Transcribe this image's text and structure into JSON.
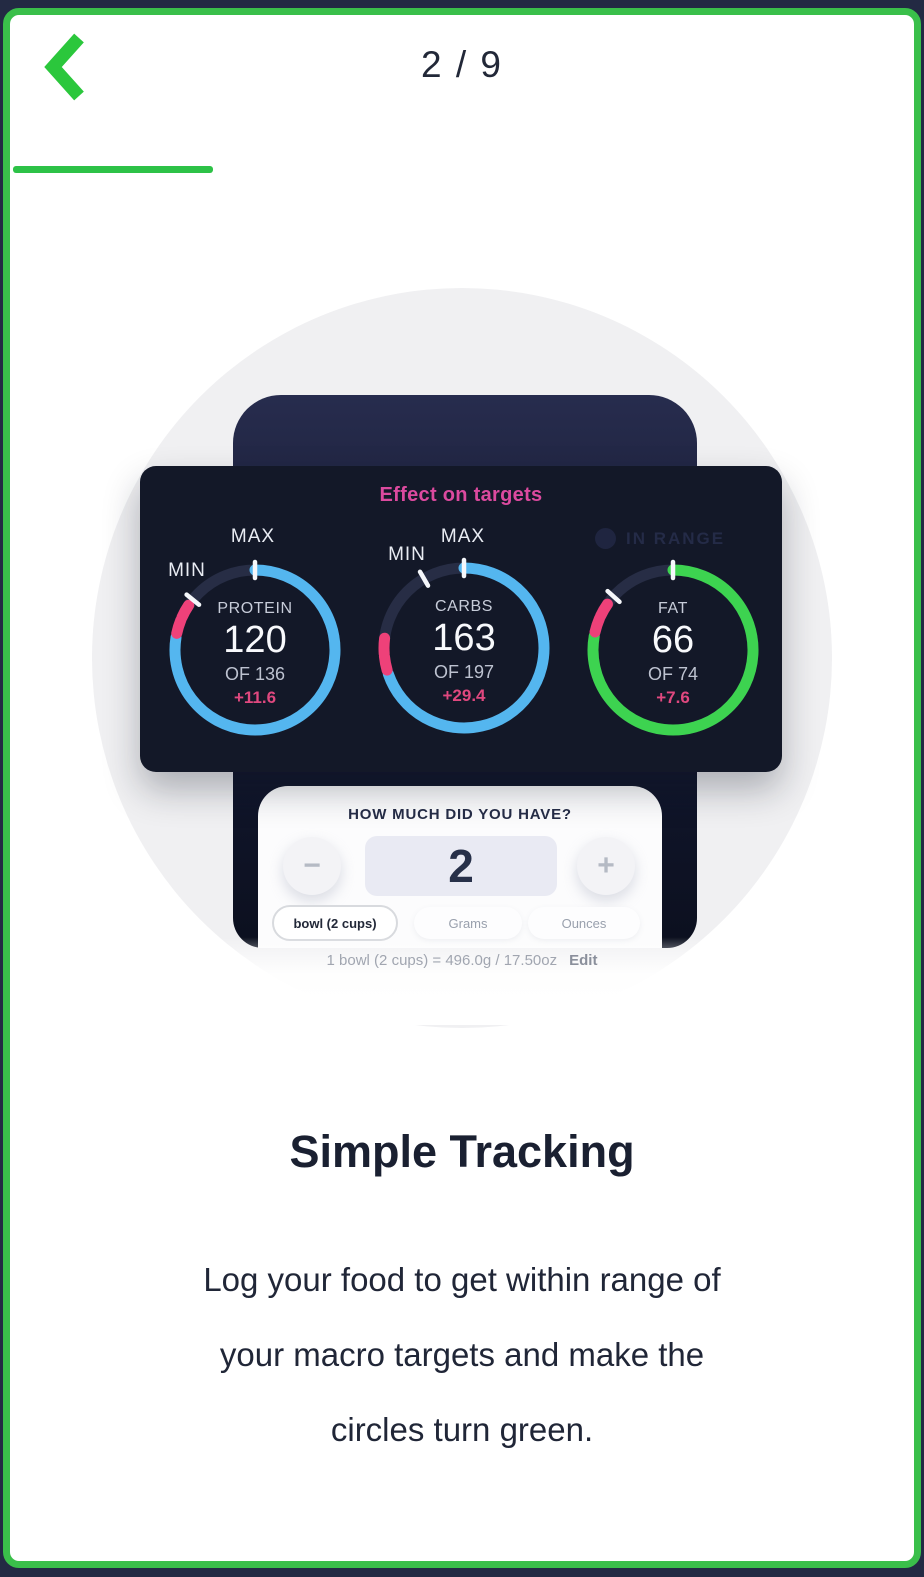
{
  "frame": {
    "page_indicator": "2 / 9"
  },
  "colors": {
    "accent_green": "#3abf4a",
    "progress_green": "#2dc247",
    "chevron_green": "#2bc73c",
    "card_bg": "#131828",
    "ring_track": "#272d45",
    "ring_blue": "#54b6ef",
    "ring_green": "#3dd350",
    "segment_pink": "#ee4179",
    "delta_pink": "#e0487f",
    "title_pink": "#dc4a9f"
  },
  "device": {
    "card_title": "Effect on targets",
    "in_range_label": "IN RANGE",
    "gauges": [
      {
        "id": "protein",
        "label": "PROTEIN",
        "value": "120",
        "of": "OF 136",
        "delta": "+11.6",
        "ring_color": "#54b6ef",
        "arc_end": 279,
        "dashes": [
          [
            282,
            292
          ],
          [
            294,
            304
          ]
        ],
        "min_tick": 309,
        "max_tick": 0,
        "min_label": "MIN",
        "max_label": "MAX"
      },
      {
        "id": "carbs",
        "label": "CARBS",
        "value": "163",
        "of": "OF 197",
        "delta": "+29.4",
        "ring_color": "#54b6ef",
        "arc_end": 251,
        "dashes": [
          [
            254,
            264
          ],
          [
            266,
            277
          ]
        ],
        "min_tick": 330,
        "max_tick": 0,
        "min_label": "MIN",
        "max_label": "MAX"
      },
      {
        "id": "fat",
        "label": "FAT",
        "value": "66",
        "of": "OF 74",
        "delta": "+7.6",
        "ring_color": "#3dd350",
        "arc_end": 280,
        "dashes": [
          [
            283,
            293
          ],
          [
            295,
            305
          ]
        ],
        "min_tick": 312,
        "max_tick": 0,
        "in_range": true
      }
    ],
    "sheet": {
      "question": "HOW MUCH DID YOU HAVE?",
      "quantity": "2",
      "minus_symbol": "−",
      "plus_symbol": "+",
      "units": [
        {
          "label": "bowl (2 cups)",
          "selected": true
        },
        {
          "label": "Grams",
          "selected": false
        },
        {
          "label": "Ounces",
          "selected": false
        }
      ],
      "conversion": "1 bowl (2 cups) = 496.0g / 17.50oz",
      "edit_label": "Edit"
    }
  },
  "content": {
    "title": "Simple Tracking",
    "body_lines": [
      "Log your food to get within range of",
      "your macro targets and make the",
      "circles turn green."
    ]
  }
}
